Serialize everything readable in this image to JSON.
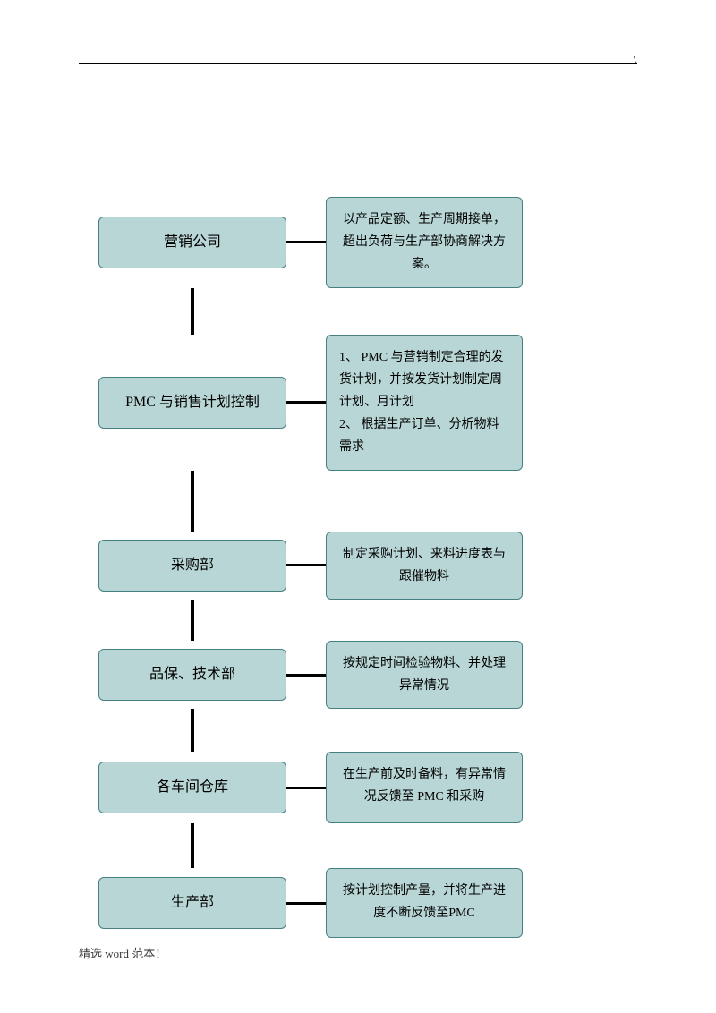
{
  "corner_mark": "'.",
  "footer": "精选 word 范本！",
  "flowchart": {
    "type": "flowchart",
    "box_bg_color": "#b9d6d6",
    "box_border_color": "#468080",
    "connector_color": "#000000",
    "left_box_width": 210,
    "right_box_width": 220,
    "h_connector_width": 44,
    "border_radius": 6,
    "nodes": [
      {
        "left_label": "营销公司",
        "left_height": 58,
        "right_text": "以产品定额、生产周期接单，超出负荷与生产部协商解决方案。",
        "right_height": 78,
        "v_gap": 52
      },
      {
        "left_label": "PMC 与销售计划控制",
        "left_height": 58,
        "right_text": "1、 PMC 与营销制定合理的发货计划，并按发货计划制定周计划、月计划\n2、 根据生产订单、分析物料需求",
        "right_height": 112,
        "v_gap": 68
      },
      {
        "left_label": "采购部",
        "left_height": 58,
        "right_text": "制定采购计划、来料进度表与跟催物料",
        "right_height": 62,
        "v_gap": 46
      },
      {
        "left_label": "品保、技术部",
        "left_height": 58,
        "right_text": "按规定时间检验物料、并处理异常情况",
        "right_height": 62,
        "v_gap": 48
      },
      {
        "left_label": "各车间仓库",
        "left_height": 58,
        "right_text": "在生产前及时备料，有异常情况反馈至 PMC 和采购",
        "right_height": 80,
        "v_gap": 50
      },
      {
        "left_label": "生产部",
        "left_height": 58,
        "right_text": "按计划控制产量，并将生产进度不断反馈至PMC",
        "right_height": 78,
        "v_gap": 0
      }
    ]
  }
}
